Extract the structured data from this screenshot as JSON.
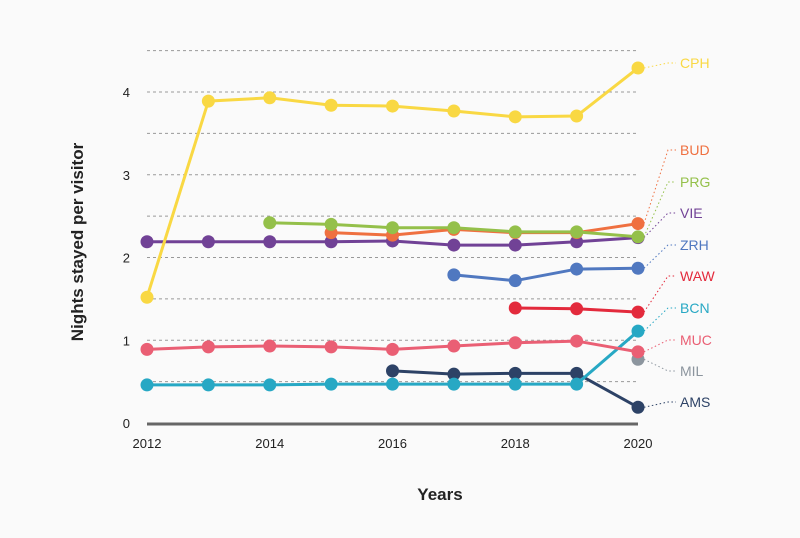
{
  "chart_data": {
    "type": "line",
    "title": "",
    "xlabel": "Years",
    "ylabel": "Nights stayed per visitor",
    "xlim": [
      2012,
      2020
    ],
    "ylim": [
      0,
      4.5
    ],
    "x_ticks": [
      "2012",
      "2014",
      "2016",
      "2018",
      "2020"
    ],
    "y_ticks": [
      "0",
      "1",
      "2",
      "3",
      "4"
    ],
    "grid": "horizontal dashed every 0.5",
    "legend": "direct labels right",
    "series": [
      {
        "name": "CPH",
        "color": "#f9d843",
        "x": [
          2012,
          2013,
          2014,
          2015,
          2016,
          2017,
          2018,
          2019,
          2020
        ],
        "values": [
          1.52,
          3.89,
          3.93,
          3.84,
          3.83,
          3.77,
          3.7,
          3.71,
          4.29
        ]
      },
      {
        "name": "BUD",
        "color": "#ef7040",
        "x": [
          2015,
          2016,
          2017,
          2018,
          2019,
          2020
        ],
        "values": [
          2.3,
          2.27,
          2.34,
          2.3,
          2.3,
          2.41
        ]
      },
      {
        "name": "PRG",
        "color": "#94c04a",
        "x": [
          2014,
          2015,
          2016,
          2017,
          2018,
          2019,
          2020
        ],
        "values": [
          2.42,
          2.4,
          2.36,
          2.36,
          2.31,
          2.31,
          2.25
        ]
      },
      {
        "name": "VIE",
        "color": "#714296",
        "x": [
          2012,
          2013,
          2014,
          2015,
          2016,
          2017,
          2018,
          2019,
          2020
        ],
        "values": [
          2.19,
          2.19,
          2.19,
          2.19,
          2.2,
          2.15,
          2.15,
          2.19,
          2.24
        ]
      },
      {
        "name": "ZRH",
        "color": "#5078c0",
        "x": [
          2017,
          2018,
          2019,
          2020
        ],
        "values": [
          1.79,
          1.72,
          1.86,
          1.87
        ]
      },
      {
        "name": "WAW",
        "color": "#e32a3c",
        "x": [
          2018,
          2019,
          2020
        ],
        "values": [
          1.39,
          1.38,
          1.34
        ]
      },
      {
        "name": "BCN",
        "color": "#27a8c4",
        "x": [
          2012,
          2013,
          2014,
          2015,
          2016,
          2017,
          2018,
          2019,
          2020
        ],
        "values": [
          0.46,
          0.46,
          0.46,
          0.47,
          0.47,
          0.47,
          0.47,
          0.47,
          1.11
        ]
      },
      {
        "name": "MUC",
        "color": "#ea5f74",
        "x": [
          2012,
          2013,
          2014,
          2015,
          2016,
          2017,
          2018,
          2019,
          2020
        ],
        "values": [
          0.89,
          0.92,
          0.93,
          0.92,
          0.89,
          0.93,
          0.97,
          0.99,
          0.86
        ]
      },
      {
        "name": "MIL",
        "color": "#8c959e",
        "x": [
          2020
        ],
        "values": [
          0.77
        ]
      },
      {
        "name": "AMS",
        "color": "#2d4266",
        "x": [
          2016,
          2017,
          2018,
          2019,
          2020
        ],
        "values": [
          0.63,
          0.59,
          0.6,
          0.6,
          0.19
        ]
      }
    ]
  }
}
